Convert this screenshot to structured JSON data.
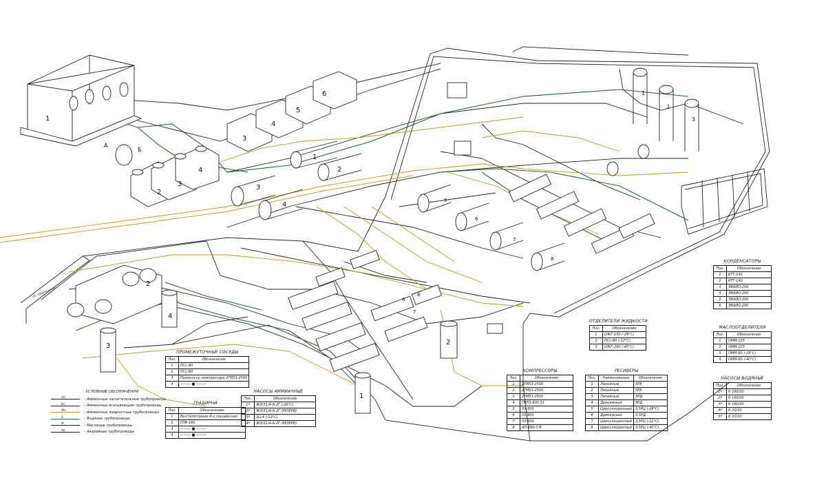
{
  "numbers": {
    "big_block": "1",
    "a": "А",
    "b": "Б",
    "tanks": [
      "2",
      "3",
      "4"
    ],
    "upper_blocks": [
      "3",
      "4",
      "5",
      "6"
    ],
    "left_recv": [
      "1",
      "2",
      "3",
      "4"
    ],
    "mid_recv": [
      "5",
      "6",
      "7",
      "8"
    ],
    "right_cond": [
      "1",
      "2",
      "3"
    ],
    "lower_left": [
      "2",
      "3",
      "4"
    ],
    "lower_mid": [
      "6",
      "7",
      "8",
      "1",
      "2"
    ]
  },
  "side_label": "Ос. обозначения",
  "legend": {
    "title": "Условные обозначения",
    "items": [
      {
        "code": "Нн",
        "text": "– Аммиачные нагнетательные трубопроводы",
        "color": "#1a1a1a"
      },
      {
        "code": "Вс",
        "text": "– Аммиачные всасывающие трубопроводы",
        "color": "#1a1a1a"
      },
      {
        "code": "Жа",
        "text": "– Аммиачные жидкостные трубопроводы",
        "color": "#c8961e"
      },
      {
        "code": "В",
        "text": "– Водяные трубопроводы",
        "color": "#1f6b2a"
      },
      {
        "code": "М",
        "text": "– Масляные трубопроводы",
        "color": "#1a1a1a"
      },
      {
        "code": "Ав",
        "text": "– Аварийные трубопроводы",
        "color": "#1a1a1a"
      }
    ]
  },
  "tables": {
    "intermediate": {
      "title": "Промежуточные сосуды",
      "head": [
        "Поз.",
        "Обозначение"
      ],
      "rows": [
        [
          "1",
          "ПСс-80"
        ],
        [
          "2",
          "ПСс-80"
        ],
        [
          "3",
          "Промсосуд компрессора 2ГМ53-2500"
        ],
        [
          "4",
          "——— ■ ———"
        ]
      ]
    },
    "towers": {
      "title": "Градирни",
      "head": [
        "Поз.",
        "Обозначение"
      ],
      "rows": [
        [
          "1",
          "Вентиляторная 4-х секционная"
        ],
        [
          "2",
          "ГПВ-160"
        ],
        [
          "3",
          "——— ■ ———"
        ],
        [
          "4",
          "——— ■ ———"
        ]
      ]
    },
    "ammonia_pumps": {
      "title": "Насосы аммиачные",
      "head": [
        "Поз.",
        "Обозначение"
      ],
      "rows": [
        [
          "1ª",
          "ЖЭ/31/4-А-2Г (-28°С)"
        ],
        [
          "2ª",
          "ЖЭ/31/4-А-2Г (РЕЗЕРВ)"
        ],
        [
          "3ª",
          "3Ц-4 (-12°С)"
        ],
        [
          "4ª",
          "ЖЭ/31/4-А-2Г (РЕЗЕРВ)"
        ]
      ]
    },
    "separators": {
      "title": "Отделители жидкости",
      "head": [
        "Поз.",
        "Обозначение"
      ],
      "rows": [
        [
          "1",
          "ОЖГ-150 (-28°С)"
        ],
        [
          "2",
          "ПСс-80 (-12°С)"
        ],
        [
          "3",
          "ОЖГ-200 (-40°С)"
        ]
      ]
    },
    "compressors": {
      "title": "Компрессоры",
      "head": [
        "Поз.",
        "Обозначение"
      ],
      "rows": [
        [
          "1",
          "2ГМ53-2500"
        ],
        [
          "2",
          "2ГМ53-2500"
        ],
        [
          "3",
          "2ГМ53-2500"
        ],
        [
          "4",
          "ГМ53-900.31"
        ],
        [
          "5",
          "53-900"
        ],
        [
          "6",
          "53-900"
        ],
        [
          "7",
          "53-900"
        ],
        [
          "8",
          "АН-260-7-8"
        ]
      ]
    },
    "receivers": {
      "title": "Ресиверы",
      "head": [
        "Поз.",
        "Наименование",
        "Обозначение"
      ],
      "rows": [
        [
          "1",
          "Линейный",
          "5РВ"
        ],
        [
          "2",
          "Линейный",
          "5РВ"
        ],
        [
          "3",
          "Линейный",
          "5РД"
        ],
        [
          "4",
          "Дренажный",
          "5РД"
        ],
        [
          "5",
          "Циркуляционный",
          "3,5РЦ (-28°С)"
        ],
        [
          "6",
          "Дренажный",
          "3,5РД"
        ],
        [
          "7",
          "Циркуляционный",
          "3,5РЦ (-12°С)"
        ],
        [
          "8",
          "Циркуляционный",
          "3,5РЦ (-40°С)"
        ]
      ]
    },
    "condensers": {
      "title": "Конденсаторы",
      "head": [
        "Поз.",
        "Обозначение"
      ],
      "rows": [
        [
          "1",
          "КТГ-140"
        ],
        [
          "2",
          "КТГ-140"
        ],
        [
          "3",
          "ЭВАИО-200"
        ],
        [
          "4",
          "ЭВАИО-200"
        ],
        [
          "5",
          "ЭВАИО-200"
        ],
        [
          "6",
          "ЭВАИО-200"
        ]
      ]
    },
    "oil_separators": {
      "title": "Маслоотделители",
      "head": [
        "Поз.",
        "Обозначение"
      ],
      "rows": [
        [
          "1",
          "ОММ-125"
        ],
        [
          "2",
          "ОММ-125"
        ],
        [
          "3",
          "ОММ-80 (-28°С)"
        ],
        [
          "4",
          "ОММ-80 (-40°С)"
        ]
      ]
    },
    "water_pumps": {
      "title": "Насосы водяные",
      "head": [
        "Поз.",
        "Обозначение"
      ],
      "rows": [
        [
          "1ª",
          "К 160/20"
        ],
        [
          "2ª",
          "К 160/20"
        ],
        [
          "3ª",
          "К 160/20"
        ],
        [
          "4ª",
          "К 20/30"
        ],
        [
          "5ª",
          "К 20/30"
        ]
      ]
    }
  }
}
